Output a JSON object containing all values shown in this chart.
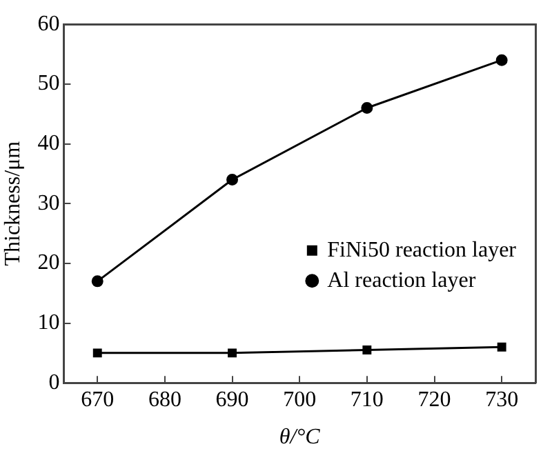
{
  "chart_data": {
    "type": "line",
    "xlabel": "θ/°C",
    "ylabel": "Thickness/μm",
    "x": [
      670,
      690,
      710,
      730
    ],
    "series": [
      {
        "name": "FiNi50 reaction layer",
        "color": "#000000",
        "values": [
          5,
          5,
          5.5,
          6
        ],
        "marker": "square"
      },
      {
        "name": "Al reaction layer",
        "color": "#000000",
        "values": [
          17,
          34,
          46,
          54
        ],
        "marker": "circle"
      }
    ],
    "xlim": [
      665,
      735
    ],
    "xticks": [
      670,
      680,
      690,
      700,
      710,
      720,
      730
    ],
    "ylim": [
      0,
      60
    ],
    "yticks": [
      0,
      10,
      20,
      30,
      40,
      50,
      60
    ],
    "grid": false,
    "legend": "right",
    "line_style": "solid"
  }
}
